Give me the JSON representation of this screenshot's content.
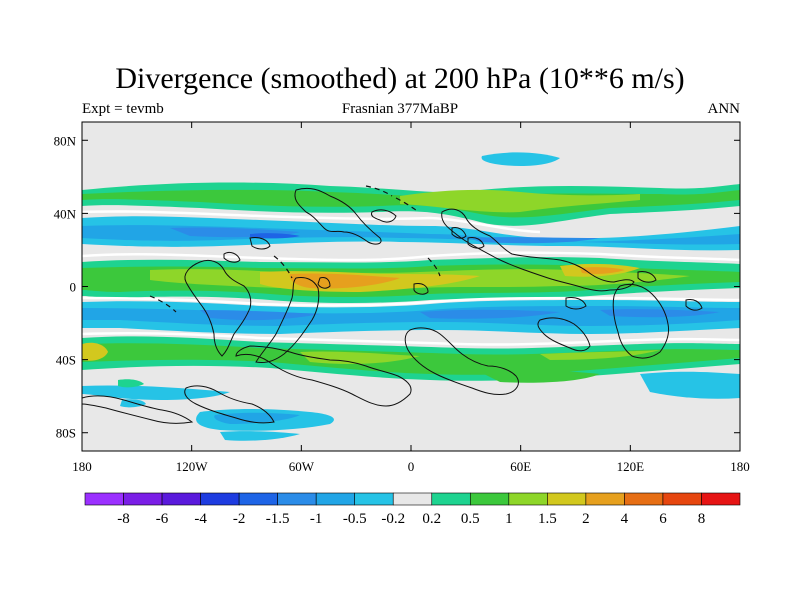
{
  "figure": {
    "title": "Divergence (smoothed) at 200 hPa (10**6 m/s)",
    "left_label": "Expt = tevmb",
    "center_label": "Frasnian 377MaBP",
    "right_label": "ANN"
  },
  "axes": {
    "y_ticks": [
      "80N",
      "40N",
      "0",
      "40S",
      "80S"
    ],
    "y_values": [
      80,
      40,
      0,
      -40,
      -80
    ],
    "x_ticks": [
      "180",
      "120W",
      "60W",
      "0",
      "60E",
      "120E",
      "180"
    ],
    "x_values": [
      -180,
      -120,
      -60,
      0,
      60,
      120,
      180
    ],
    "lon_range": [
      -180,
      180
    ],
    "lat_range": [
      -90,
      90
    ]
  },
  "colorbar": {
    "colors": [
      "#9b30ff",
      "#7a1ee6",
      "#5a1adc",
      "#1e3ce0",
      "#1e64e6",
      "#2b8ce8",
      "#21a5e6",
      "#26c3e6",
      "#e8e8e8",
      "#1ed390",
      "#3cc83c",
      "#8ed629",
      "#d2c81e",
      "#e6a01e",
      "#e66e14",
      "#e6460f",
      "#e61414"
    ],
    "labels": [
      "-8",
      "-6",
      "-4",
      "-2",
      "-1.5",
      "-1",
      "-0.5",
      "-0.2",
      "0.2",
      "0.5",
      "1",
      "1.5",
      "2",
      "4",
      "6",
      "8"
    ]
  }
}
